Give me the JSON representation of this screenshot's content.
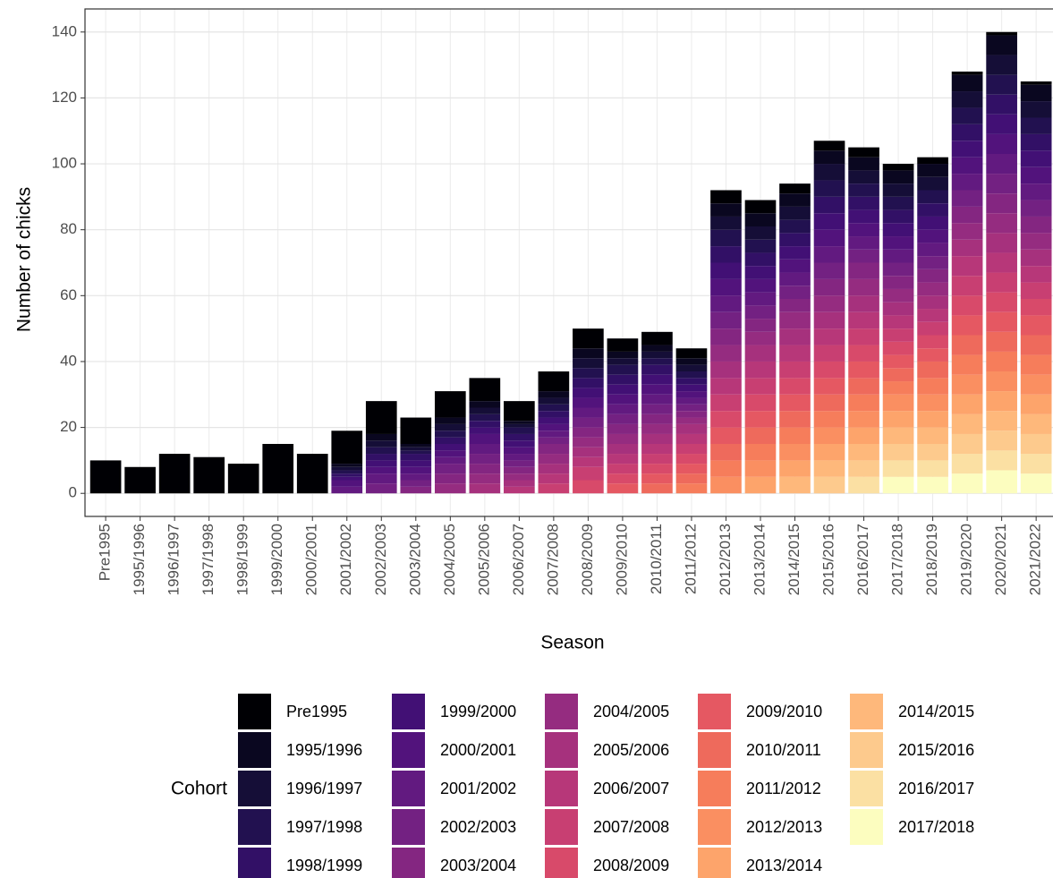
{
  "chart_data": {
    "type": "stacked-bar",
    "x_label": "Season",
    "y_label": "Number of chicks",
    "legend_title": "Cohort",
    "categories": [
      "Pre1995",
      "1995/1996",
      "1996/1997",
      "1997/1998",
      "1998/1999",
      "1999/2000",
      "2000/2001",
      "2001/2002",
      "2002/2003",
      "2003/2004",
      "2004/2005",
      "2005/2006",
      "2006/2007",
      "2007/2008",
      "2008/2009",
      "2009/2010",
      "2010/2011",
      "2011/2012",
      "2012/2013",
      "2013/2014",
      "2014/2015",
      "2015/2016",
      "2016/2017",
      "2017/2018",
      "2018/2019",
      "2019/2020",
      "2020/2021",
      "2021/2022"
    ],
    "ylim": [
      -7,
      147
    ],
    "yticks": [
      0,
      20,
      40,
      60,
      80,
      100,
      120,
      140
    ],
    "grid": true,
    "series": [
      {
        "name": "Pre1995",
        "color": "#000004",
        "values": [
          10,
          8,
          12,
          11,
          9,
          15,
          12,
          10,
          10,
          8,
          8,
          7,
          6,
          6,
          6,
          4,
          4,
          3,
          4,
          4,
          3,
          3,
          3,
          2,
          2,
          1,
          1,
          1
        ]
      },
      {
        "name": "1995/1996",
        "color": "#0A0720",
        "values": [
          0,
          0,
          0,
          0,
          0,
          0,
          0,
          1,
          2,
          1,
          2,
          2,
          1,
          2,
          3,
          2,
          2,
          2,
          4,
          4,
          4,
          4,
          4,
          4,
          4,
          5,
          6,
          5
        ]
      },
      {
        "name": "1996/1997",
        "color": "#150E37",
        "values": [
          0,
          0,
          0,
          0,
          0,
          0,
          0,
          1,
          2,
          1,
          2,
          2,
          1,
          2,
          3,
          2,
          2,
          2,
          4,
          4,
          4,
          5,
          4,
          4,
          4,
          5,
          6,
          5
        ]
      },
      {
        "name": "1997/1998",
        "color": "#221150",
        "values": [
          0,
          0,
          0,
          0,
          0,
          0,
          0,
          1,
          2,
          1,
          2,
          2,
          2,
          2,
          3,
          3,
          2,
          2,
          5,
          4,
          4,
          5,
          4,
          4,
          4,
          5,
          6,
          5
        ]
      },
      {
        "name": "1998/1999",
        "color": "#321066",
        "values": [
          0,
          0,
          0,
          0,
          0,
          0,
          0,
          1,
          2,
          2,
          2,
          2,
          2,
          2,
          3,
          3,
          3,
          2,
          5,
          4,
          4,
          5,
          4,
          4,
          4,
          5,
          6,
          5
        ]
      },
      {
        "name": "1999/2000",
        "color": "#421075",
        "values": [
          0,
          0,
          0,
          0,
          0,
          0,
          0,
          1,
          2,
          2,
          2,
          2,
          2,
          2,
          3,
          3,
          3,
          2,
          5,
          4,
          4,
          5,
          4,
          4,
          4,
          5,
          6,
          5
        ]
      },
      {
        "name": "2000/2001",
        "color": "#52137C",
        "values": [
          0,
          0,
          0,
          0,
          0,
          0,
          0,
          2,
          2,
          2,
          2,
          3,
          2,
          2,
          3,
          3,
          3,
          2,
          5,
          4,
          4,
          5,
          4,
          4,
          4,
          5,
          6,
          5
        ]
      },
      {
        "name": "2001/2002",
        "color": "#621A80",
        "values": [
          0,
          0,
          0,
          0,
          0,
          0,
          0,
          2,
          3,
          2,
          2,
          3,
          2,
          2,
          3,
          3,
          3,
          2,
          5,
          4,
          4,
          5,
          4,
          4,
          4,
          5,
          6,
          5
        ]
      },
      {
        "name": "2002/2003",
        "color": "#732182",
        "values": [
          0,
          0,
          0,
          0,
          0,
          0,
          0,
          0,
          3,
          2,
          3,
          3,
          2,
          2,
          3,
          3,
          3,
          2,
          5,
          4,
          4,
          5,
          4,
          4,
          4,
          5,
          6,
          5
        ]
      },
      {
        "name": "2003/2004",
        "color": "#842681",
        "values": [
          0,
          0,
          0,
          0,
          0,
          0,
          0,
          0,
          0,
          2,
          3,
          3,
          2,
          3,
          3,
          3,
          3,
          2,
          5,
          4,
          4,
          5,
          5,
          4,
          4,
          5,
          6,
          5
        ]
      },
      {
        "name": "2004/2005",
        "color": "#952C80",
        "values": [
          0,
          0,
          0,
          0,
          0,
          0,
          0,
          0,
          0,
          0,
          3,
          3,
          2,
          3,
          3,
          3,
          3,
          2,
          5,
          4,
          5,
          5,
          5,
          4,
          4,
          5,
          6,
          5
        ]
      },
      {
        "name": "2005/2006",
        "color": "#A6317D",
        "values": [
          0,
          0,
          0,
          0,
          0,
          0,
          0,
          0,
          0,
          0,
          0,
          3,
          2,
          3,
          3,
          3,
          3,
          3,
          5,
          5,
          5,
          5,
          5,
          4,
          4,
          5,
          6,
          5
        ]
      },
      {
        "name": "2006/2007",
        "color": "#B73779",
        "values": [
          0,
          0,
          0,
          0,
          0,
          0,
          0,
          0,
          0,
          0,
          0,
          0,
          2,
          3,
          3,
          3,
          3,
          3,
          5,
          5,
          5,
          5,
          5,
          4,
          4,
          6,
          6,
          5
        ]
      },
      {
        "name": "2007/2008",
        "color": "#C83F72",
        "values": [
          0,
          0,
          0,
          0,
          0,
          0,
          0,
          0,
          0,
          0,
          0,
          0,
          0,
          3,
          4,
          3,
          3,
          3,
          5,
          5,
          5,
          5,
          5,
          4,
          4,
          6,
          6,
          5
        ]
      },
      {
        "name": "2008/2009",
        "color": "#D84A6A",
        "values": [
          0,
          0,
          0,
          0,
          0,
          0,
          0,
          0,
          0,
          0,
          0,
          0,
          0,
          0,
          4,
          3,
          3,
          3,
          5,
          5,
          5,
          5,
          5,
          4,
          4,
          6,
          6,
          5
        ]
      },
      {
        "name": "2009/2010",
        "color": "#E55862",
        "values": [
          0,
          0,
          0,
          0,
          0,
          0,
          0,
          0,
          0,
          0,
          0,
          0,
          0,
          0,
          0,
          3,
          3,
          3,
          5,
          5,
          5,
          5,
          5,
          4,
          4,
          6,
          6,
          6
        ]
      },
      {
        "name": "2010/2011",
        "color": "#EE6A5C",
        "values": [
          0,
          0,
          0,
          0,
          0,
          0,
          0,
          0,
          0,
          0,
          0,
          0,
          0,
          0,
          0,
          0,
          3,
          3,
          5,
          5,
          5,
          5,
          5,
          4,
          5,
          6,
          6,
          6
        ]
      },
      {
        "name": "2011/2012",
        "color": "#F67D5B",
        "values": [
          0,
          0,
          0,
          0,
          0,
          0,
          0,
          0,
          0,
          0,
          0,
          0,
          0,
          0,
          0,
          0,
          0,
          3,
          5,
          5,
          5,
          5,
          5,
          4,
          5,
          6,
          6,
          6
        ]
      },
      {
        "name": "2012/2013",
        "color": "#FA8F61",
        "values": [
          0,
          0,
          0,
          0,
          0,
          0,
          0,
          0,
          0,
          0,
          0,
          0,
          0,
          0,
          0,
          0,
          0,
          0,
          5,
          5,
          5,
          5,
          5,
          5,
          5,
          6,
          6,
          6
        ]
      },
      {
        "name": "2013/2014",
        "color": "#FDA46B",
        "values": [
          0,
          0,
          0,
          0,
          0,
          0,
          0,
          0,
          0,
          0,
          0,
          0,
          0,
          0,
          0,
          0,
          0,
          0,
          0,
          5,
          5,
          5,
          5,
          5,
          5,
          6,
          6,
          6
        ]
      },
      {
        "name": "2014/2015",
        "color": "#FEB87B",
        "values": [
          0,
          0,
          0,
          0,
          0,
          0,
          0,
          0,
          0,
          0,
          0,
          0,
          0,
          0,
          0,
          0,
          0,
          0,
          0,
          0,
          5,
          5,
          5,
          5,
          5,
          6,
          6,
          6
        ]
      },
      {
        "name": "2015/2016",
        "color": "#FDCA8D",
        "values": [
          0,
          0,
          0,
          0,
          0,
          0,
          0,
          0,
          0,
          0,
          0,
          0,
          0,
          0,
          0,
          0,
          0,
          0,
          0,
          0,
          0,
          5,
          5,
          5,
          5,
          6,
          6,
          6
        ]
      },
      {
        "name": "2016/2017",
        "color": "#FBE0A3",
        "values": [
          0,
          0,
          0,
          0,
          0,
          0,
          0,
          0,
          0,
          0,
          0,
          0,
          0,
          0,
          0,
          0,
          0,
          0,
          0,
          0,
          0,
          0,
          5,
          5,
          5,
          6,
          6,
          6
        ]
      },
      {
        "name": "2017/2018",
        "color": "#FCFDBF",
        "values": [
          0,
          0,
          0,
          0,
          0,
          0,
          0,
          0,
          0,
          0,
          0,
          0,
          0,
          0,
          0,
          0,
          0,
          0,
          0,
          0,
          0,
          0,
          0,
          5,
          5,
          6,
          7,
          6
        ]
      }
    ]
  }
}
